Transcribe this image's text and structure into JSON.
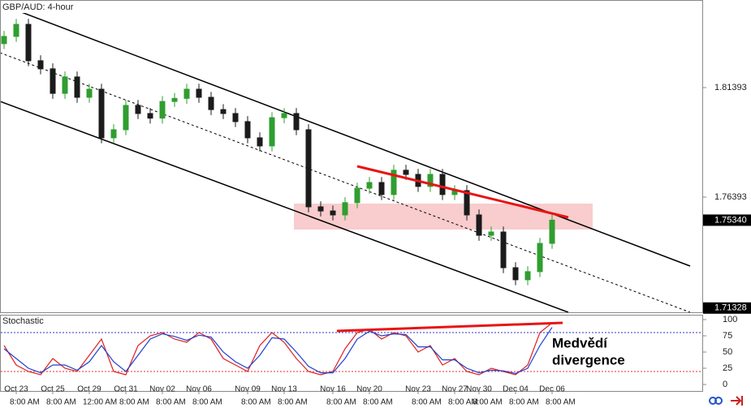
{
  "chart_data": [
    {
      "type": "candlestick",
      "title": "GBP/AUD: 4-hour",
      "categories": [
        null,
        "Oct 23",
        null,
        null,
        "Oct 25",
        null,
        null,
        "Oct 29",
        null,
        null,
        "Oct 31",
        null,
        null,
        "Nov 02",
        null,
        null,
        "Nov 06",
        null,
        null,
        null,
        "Nov 09",
        null,
        null,
        "Nov 13",
        null,
        null,
        null,
        "Nov 16",
        null,
        null,
        "Nov 20",
        null,
        null,
        null,
        "Nov 23",
        null,
        null,
        "Nov 27",
        null,
        "Nov 30",
        null,
        null,
        "Dec 04",
        null,
        null,
        "Dec 06"
      ],
      "time_labels": [
        null,
        "8:00 AM",
        null,
        null,
        "8:00 AM",
        null,
        null,
        "12:00 AM",
        null,
        null,
        "8:00 AM",
        null,
        null,
        "8:00 AM",
        null,
        null,
        "8:00 AM",
        null,
        null,
        null,
        "8:00 AM",
        null,
        null,
        "8:00 AM",
        null,
        null,
        null,
        "8:00 AM",
        null,
        null,
        "8:00 AM",
        null,
        null,
        null,
        "8:00 AM",
        null,
        null,
        "8:00 AM",
        null,
        "8:00 AM",
        null,
        null,
        "8:00 AM",
        null,
        null,
        "8:00 AM"
      ],
      "open": [
        1.834,
        1.8373,
        1.8428,
        1.8262,
        1.8225,
        1.8113,
        1.8188,
        1.8095,
        1.8132,
        1.791,
        1.7947,
        1.8058,
        1.8021,
        1.8,
        1.8076,
        1.809,
        1.8132,
        1.8095,
        1.8039,
        1.8021,
        1.7984,
        1.791,
        1.7873,
        1.8002,
        1.8021,
        1.7947,
        1.7595,
        1.7576,
        1.7558,
        1.7614,
        1.768,
        1.7706,
        1.7651,
        1.7762,
        1.7743,
        1.7688,
        1.7743,
        1.7651,
        1.7669,
        1.7558,
        1.7465,
        1.748,
        1.7317,
        1.7262,
        1.7299,
        1.7428
      ],
      "high": [
        1.8398,
        1.8453,
        1.8453,
        1.8287,
        1.825,
        1.8213,
        1.8213,
        1.8157,
        1.8157,
        1.7972,
        1.8083,
        1.8083,
        1.8046,
        1.8101,
        1.8115,
        1.8157,
        1.8157,
        1.812,
        1.8064,
        1.8046,
        1.8009,
        1.7935,
        1.8027,
        1.8046,
        1.8046,
        1.7972,
        1.762,
        1.7601,
        1.7639,
        1.7705,
        1.7731,
        1.7731,
        1.7787,
        1.7787,
        1.7768,
        1.7768,
        1.7768,
        1.7694,
        1.7694,
        1.7583,
        1.7505,
        1.7505,
        1.7342,
        1.7324,
        1.7453,
        1.7559
      ],
      "low": [
        1.8315,
        1.8348,
        1.8237,
        1.82,
        1.8088,
        1.8088,
        1.807,
        1.807,
        1.7885,
        1.7885,
        1.7922,
        1.7996,
        1.7975,
        1.7975,
        1.8051,
        1.8065,
        1.807,
        1.8014,
        1.7996,
        1.7959,
        1.7885,
        1.7848,
        1.7848,
        1.7977,
        1.7922,
        1.757,
        1.7551,
        1.7533,
        1.7533,
        1.7589,
        1.7655,
        1.7626,
        1.7626,
        1.7718,
        1.7663,
        1.7663,
        1.7626,
        1.7626,
        1.7533,
        1.744,
        1.744,
        1.7292,
        1.7237,
        1.7237,
        1.7274,
        1.7403
      ],
      "close": [
        1.8373,
        1.8428,
        1.8262,
        1.8225,
        1.8113,
        1.8188,
        1.8095,
        1.8132,
        1.791,
        1.7947,
        1.8058,
        1.8021,
        1.8,
        1.8076,
        1.809,
        1.8132,
        1.8095,
        1.8039,
        1.8021,
        1.7984,
        1.791,
        1.7873,
        1.8002,
        1.8021,
        1.7947,
        1.7595,
        1.7576,
        1.7558,
        1.7614,
        1.768,
        1.7706,
        1.7651,
        1.7762,
        1.7743,
        1.7688,
        1.7743,
        1.7651,
        1.7669,
        1.7558,
        1.7465,
        1.748,
        1.7317,
        1.7262,
        1.7299,
        1.7428,
        1.7534
      ],
      "up_color": "#2f9e2f",
      "down_color": "#1b1b1b",
      "ylim": [
        1.71134,
        1.85393
      ],
      "yticks": [
        1.81393,
        1.76393
      ],
      "price_tags": [
        {
          "value": 1.7534,
          "label": "1.75340"
        },
        1.71328
      ]
    },
    {
      "type": "stochastic",
      "title": "Stochastic",
      "series": [
        {
          "color": "#e02020",
          "values": [
            60,
            30,
            20,
            15,
            40,
            25,
            20,
            45,
            70,
            20,
            15,
            60,
            75,
            80,
            70,
            65,
            80,
            70,
            40,
            30,
            20,
            60,
            80,
            65,
            40,
            20,
            15,
            20,
            55,
            80,
            85,
            70,
            80,
            75,
            50,
            60,
            30,
            40,
            20,
            15,
            25,
            20,
            15,
            30,
            80,
            95
          ]
        },
        {
          "color": "#2040d0",
          "values": [
            55,
            40,
            25,
            18,
            30,
            30,
            22,
            35,
            60,
            35,
            20,
            45,
            70,
            78,
            74,
            68,
            76,
            73,
            50,
            35,
            25,
            45,
            72,
            70,
            50,
            28,
            18,
            18,
            40,
            70,
            82,
            75,
            78,
            77,
            58,
            58,
            38,
            38,
            25,
            18,
            22,
            21,
            17,
            25,
            60,
            88
          ]
        }
      ],
      "ylim": [
        0,
        100
      ],
      "yticks": [
        100,
        75,
        50,
        25,
        0
      ],
      "levels": [
        80,
        20
      ],
      "level_colors": [
        "#3333cc",
        "#e03030"
      ],
      "annotation": [
        "Medvědí",
        "divergence"
      ]
    }
  ]
}
